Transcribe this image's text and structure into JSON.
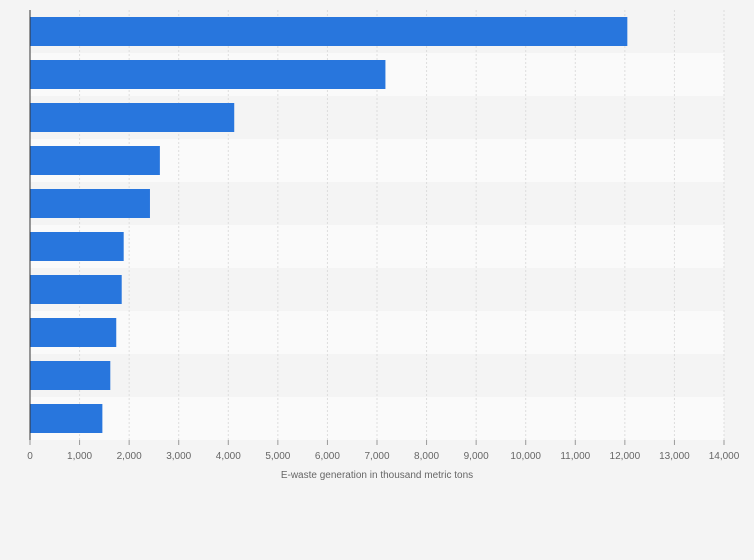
{
  "chart_data": {
    "type": "bar",
    "orientation": "horizontal",
    "categories": [
      "",
      "",
      "",
      "",
      "",
      "",
      "",
      "",
      "",
      ""
    ],
    "values": [
      12050,
      7170,
      4120,
      2620,
      2420,
      1890,
      1850,
      1740,
      1620,
      1460
    ],
    "xlabel": "E-waste generation in thousand metric tons",
    "ylabel": "",
    "xlim": [
      0,
      14000
    ],
    "xticks": [
      0,
      1000,
      2000,
      3000,
      4000,
      5000,
      6000,
      7000,
      8000,
      9000,
      10000,
      11000,
      12000,
      13000,
      14000
    ],
    "xtick_labels": [
      "0",
      "1,000",
      "2,000",
      "3,000",
      "4,000",
      "5,000",
      "6,000",
      "7,000",
      "8,000",
      "9,000",
      "10,000",
      "11,000",
      "12,000",
      "13,000",
      "14,000"
    ],
    "grid": true,
    "colors": {
      "bar": "#2876dd",
      "band_a": "#f4f4f4",
      "band_b": "#fafafa",
      "grid": "#dddddd",
      "axis": "#333333"
    }
  }
}
